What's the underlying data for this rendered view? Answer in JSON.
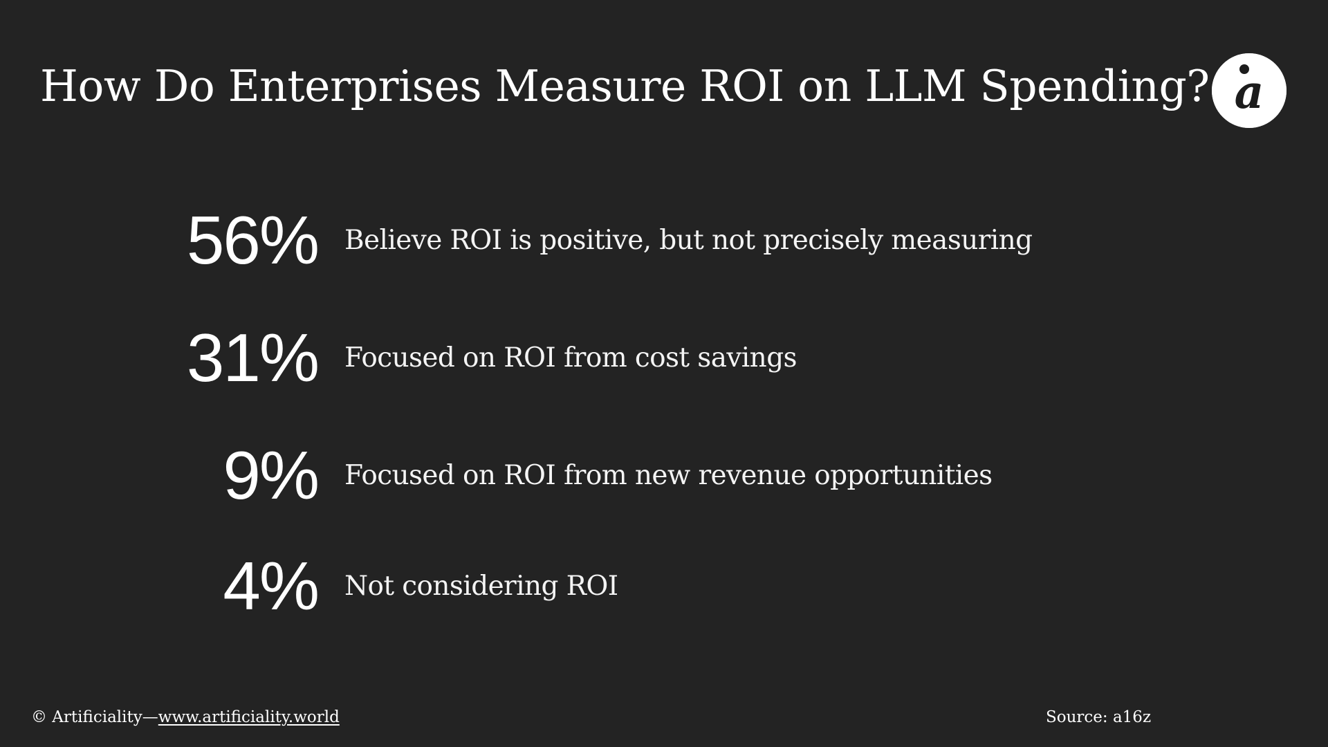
{
  "title": "How Do Enterprises Measure ROI on LLM Spending?",
  "logo": {
    "icon": "artificiality-logo-icon",
    "glyph": "a",
    "background": "#ffffff",
    "foreground": "#1c1c1c"
  },
  "stats": [
    {
      "value": "56%",
      "label": "Believe ROI is positive, but not precisely measuring"
    },
    {
      "value": "31%",
      "label": "Focused on ROI from cost savings"
    },
    {
      "value": "9%",
      "label": "Focused on ROI from new revenue opportunities"
    },
    {
      "value": "4%",
      "label": "Not considering ROI"
    }
  ],
  "footer": {
    "credit_prefix": "© Artificiality—",
    "link_text": "www.artificiality.world",
    "source": "Source: a16z"
  },
  "colors": {
    "background": "#232323",
    "text": "#ffffff"
  }
}
